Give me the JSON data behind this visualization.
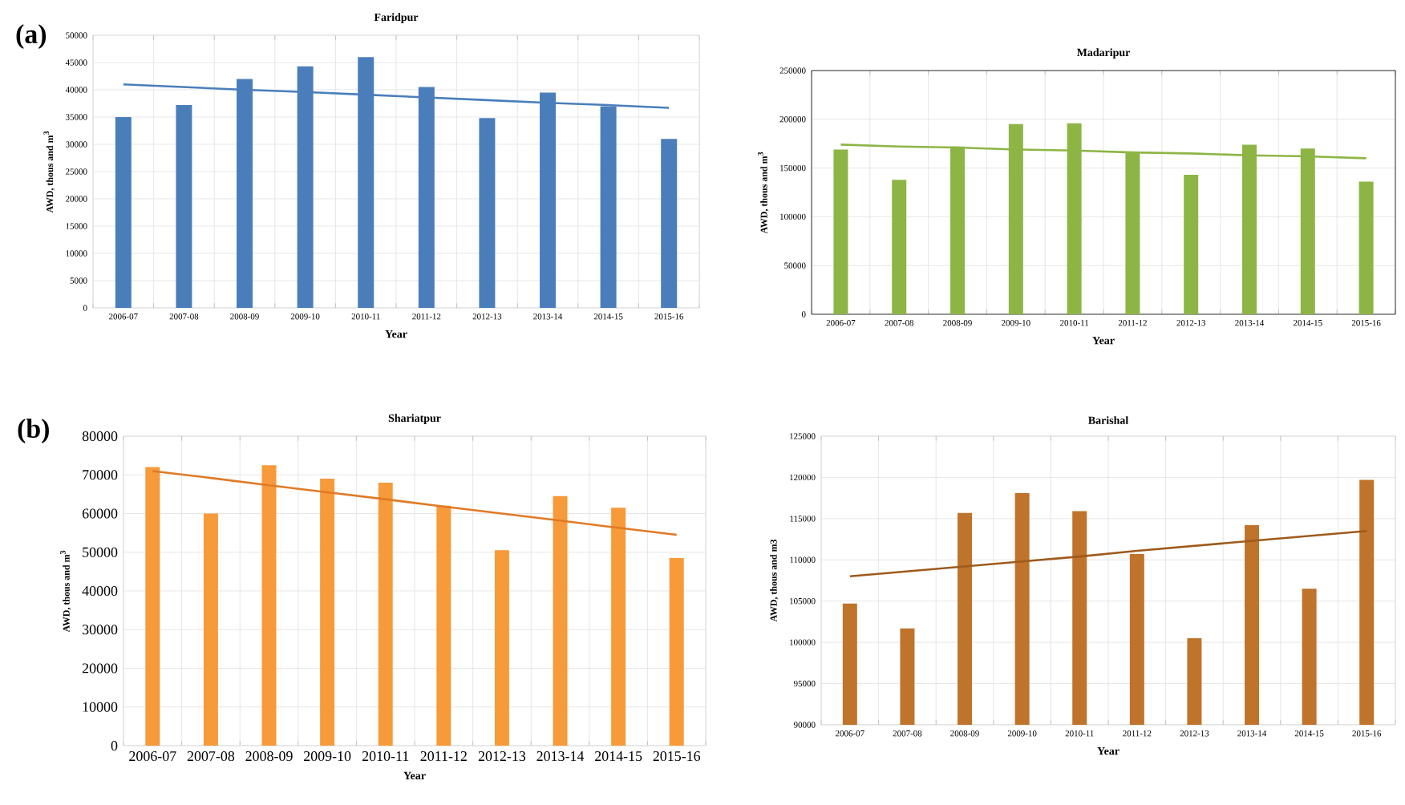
{
  "chart_data": [
    {
      "type": "bar",
      "title": "Faridpur",
      "xlabel": "Year",
      "ylabel": "AWD, thous and m$^{3}$",
      "annotations": [
        "(a)"
      ],
      "categories": [
        "2006-07",
        "2007-08",
        "2008-09",
        "2009-10",
        "2010-11",
        "2011-12",
        "2012-13",
        "2013-14",
        "2014-15",
        "2015-16"
      ],
      "series": [
        {
          "color": "#4a7ebb",
          "values": [
            35000,
            37200,
            42000,
            44300,
            46000,
            40500,
            34800,
            39500,
            37000,
            31000
          ]
        },
        {
          "type": "line",
          "color": "#4a7ebb",
          "values": [
            41000,
            40500,
            40000,
            39600,
            39100,
            38600,
            38100,
            37600,
            37200,
            36700
          ]
        }
      ],
      "ylim": [
        0,
        50000
      ],
      "yticks": [
        0,
        5000,
        10000,
        15000,
        20000,
        25000,
        30000,
        35000,
        40000,
        45000,
        50000
      ],
      "grid": true,
      "legend": false,
      "marker": "none"
    },
    {
      "type": "bar",
      "title": "Madaripur",
      "xlabel": "Year",
      "ylabel": "AWD, thous and m$^{3}$",
      "categories": [
        "2006-07",
        "2007-08",
        "2008-09",
        "2009-10",
        "2010-11",
        "2011-12",
        "2012-13",
        "2013-14",
        "2014-15",
        "2015-16"
      ],
      "series": [
        {
          "color": "#8db545",
          "values": [
            169000,
            138000,
            172000,
            195000,
            196000,
            167000,
            143000,
            174000,
            170000,
            136000
          ]
        },
        {
          "type": "line",
          "color": "#8db545",
          "values": [
            174000,
            172000,
            171000,
            169000,
            168000,
            166000,
            165000,
            163000,
            162000,
            160000
          ]
        }
      ],
      "ylim": [
        0,
        250000
      ],
      "yticks": [
        0,
        50000,
        100000,
        150000,
        200000,
        250000
      ],
      "grid": true,
      "legend": false,
      "marker": "none"
    },
    {
      "type": "bar",
      "title": "Shariatpur",
      "xlabel": "Year",
      "ylabel": "AWD, thous and m$^{3}$",
      "annotations": [
        "(b)"
      ],
      "categories": [
        "2006-07",
        "2007-08",
        "2008-09",
        "2009-10",
        "2010-11",
        "2011-12",
        "2012-13",
        "2013-14",
        "2014-15",
        "2015-16"
      ],
      "series": [
        {
          "color": "#f79a3a",
          "values": [
            72000,
            60000,
            72500,
            69000,
            68000,
            62000,
            50500,
            64500,
            61500,
            48500
          ]
        },
        {
          "type": "line",
          "color": "#e07a26",
          "values": [
            71000,
            69200,
            67300,
            65500,
            63700,
            61800,
            60000,
            58200,
            56300,
            54500
          ]
        }
      ],
      "ylim": [
        0,
        80000
      ],
      "yticks": [
        0,
        10000,
        20000,
        30000,
        40000,
        50000,
        60000,
        70000,
        80000
      ],
      "grid": true,
      "legend": false,
      "marker": "none"
    },
    {
      "type": "bar",
      "title": "Barishal",
      "xlabel": "Year",
      "ylabel": "AWD, thous and m3",
      "categories": [
        "2006-07",
        "2007-08",
        "2008-09",
        "2009-10",
        "2010-11",
        "2011-12",
        "2012-13",
        "2013-14",
        "2014-15",
        "2015-16"
      ],
      "series": [
        {
          "color": "#c0732a",
          "values": [
            104700,
            101700,
            115700,
            118100,
            115900,
            110700,
            100500,
            114200,
            106500,
            119700
          ]
        },
        {
          "type": "line",
          "color": "#9e5a1c",
          "values": [
            108000,
            108600,
            109200,
            109800,
            110400,
            111100,
            111700,
            112300,
            112900,
            113500
          ]
        }
      ],
      "ylim": [
        90000,
        125000
      ],
      "yticks": [
        90000,
        95000,
        100000,
        105000,
        110000,
        115000,
        120000,
        125000
      ],
      "grid": true,
      "legend": false,
      "marker": "none"
    }
  ]
}
